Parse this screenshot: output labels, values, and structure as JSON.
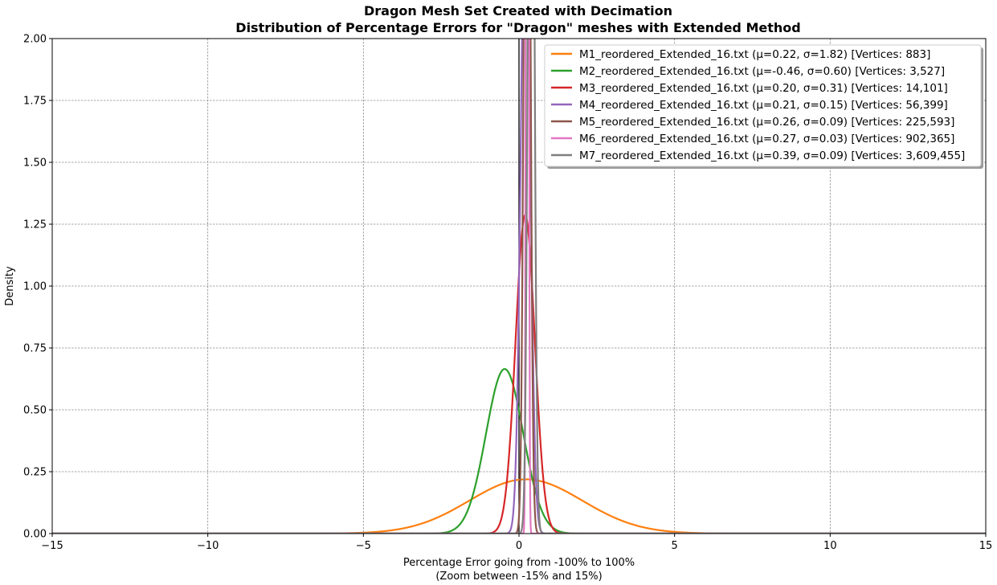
{
  "chart_data": {
    "type": "line",
    "title": "Dragon Mesh Set Created with Decimation",
    "subtitle": "Distribution of Percentage Errors for \"Dragon\" meshes with Extended Method",
    "xlabel": "Percentage Error going from -100% to 100%",
    "xlabel_line2": "(Zoom between -15% and 15%)",
    "ylabel": "Density",
    "xlim": [
      -15,
      15
    ],
    "ylim": [
      0,
      2
    ],
    "xticks": [
      -15,
      -10,
      -5,
      0,
      5,
      10,
      15
    ],
    "xtick_labels": [
      "−15",
      "−10",
      "−5",
      "0",
      "5",
      "10",
      "15"
    ],
    "yticks": [
      0,
      0.25,
      0.5,
      0.75,
      1.0,
      1.25,
      1.5,
      1.75,
      2.0
    ],
    "ytick_labels": [
      "0.00",
      "0.25",
      "0.50",
      "0.75",
      "1.00",
      "1.25",
      "1.50",
      "1.75",
      "2.00"
    ],
    "grid": true,
    "legend_position": "top-right",
    "reference_line_x": 0,
    "series": [
      {
        "name": "M1_reordered_Extended_16.txt (μ=0.22, σ=1.82) [Vertices: 883]",
        "mu": 0.22,
        "sigma": 1.82,
        "color": "#ff7f0e"
      },
      {
        "name": "M2_reordered_Extended_16.txt (μ=-0.46, σ=0.60) [Vertices: 3,527]",
        "mu": -0.46,
        "sigma": 0.6,
        "color": "#2ca02c"
      },
      {
        "name": "M3_reordered_Extended_16.txt (μ=0.20, σ=0.31) [Vertices: 14,101]",
        "mu": 0.2,
        "sigma": 0.31,
        "color": "#d62728"
      },
      {
        "name": "M4_reordered_Extended_16.txt (μ=0.21, σ=0.15) [Vertices: 56,399]",
        "mu": 0.21,
        "sigma": 0.15,
        "color": "#9467bd"
      },
      {
        "name": "M5_reordered_Extended_16.txt (μ=0.26, σ=0.09) [Vertices: 225,593]",
        "mu": 0.26,
        "sigma": 0.09,
        "color": "#8c564b"
      },
      {
        "name": "M6_reordered_Extended_16.txt (μ=0.27, σ=0.03) [Vertices: 902,365]",
        "mu": 0.27,
        "sigma": 0.03,
        "color": "#e377c2"
      },
      {
        "name": "M7_reordered_Extended_16.txt (μ=0.39, σ=0.09) [Vertices: 3,609,455]",
        "mu": 0.39,
        "sigma": 0.09,
        "color": "#7f7f7f"
      }
    ]
  }
}
